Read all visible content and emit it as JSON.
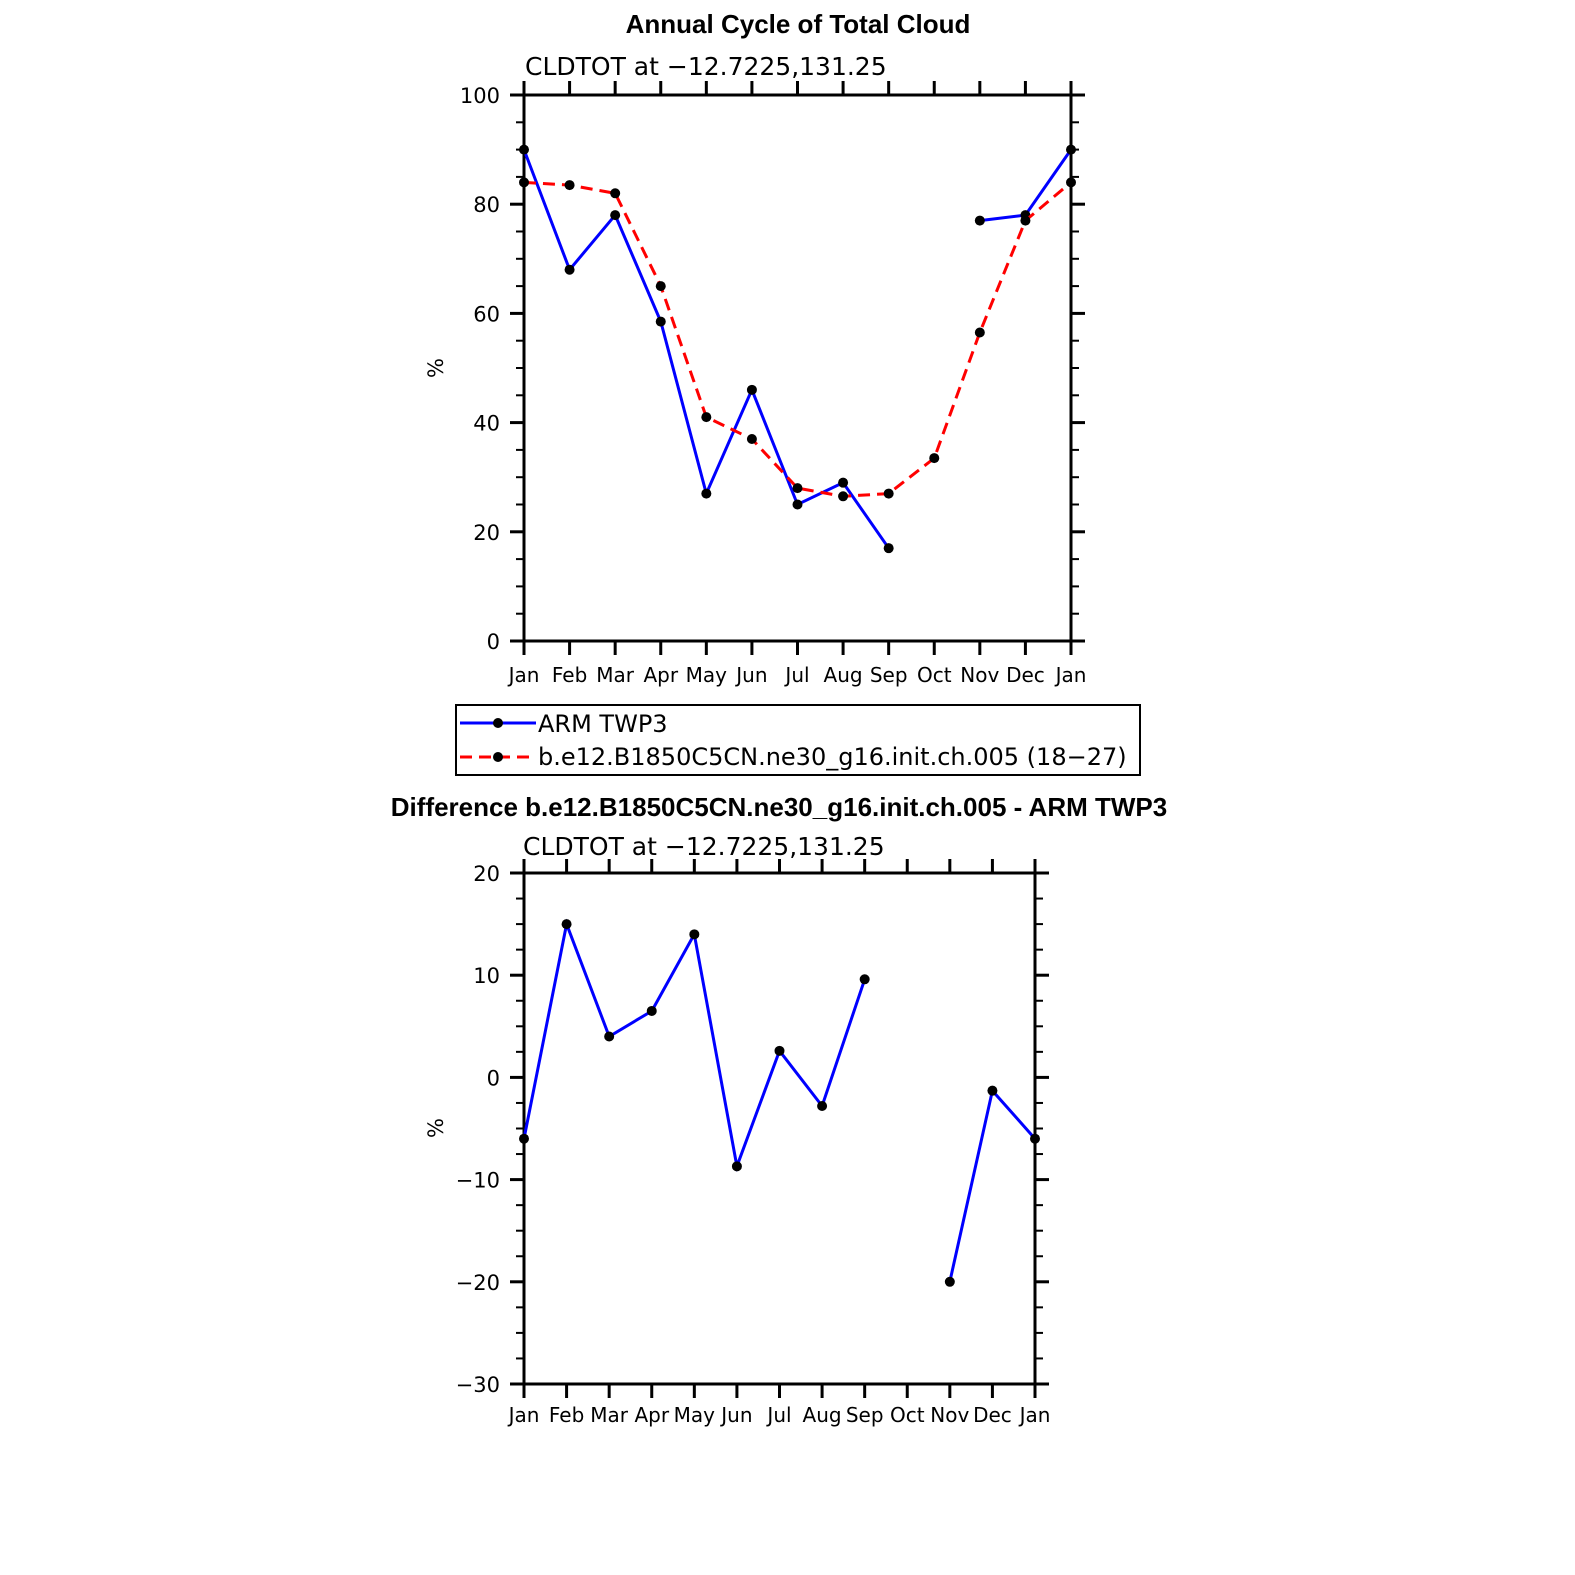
{
  "chart_data": [
    {
      "type": "line",
      "title": "Annual Cycle of Total Cloud",
      "subtitle": "CLDTOT at −12.7225,131.25",
      "ylabel": "%",
      "xlabel": "",
      "ylim": [
        0,
        100
      ],
      "yticks": [
        0,
        20,
        40,
        60,
        80,
        100
      ],
      "yticklabels": [
        "0",
        "20",
        "40",
        "60",
        "80",
        "100"
      ],
      "categories": [
        "Jan",
        "Feb",
        "Mar",
        "Apr",
        "May",
        "Jun",
        "Jul",
        "Aug",
        "Sep",
        "Oct",
        "Nov",
        "Dec",
        "Jan"
      ],
      "grid": false,
      "legend_placement": "below",
      "series": [
        {
          "name": "ARM TWP3",
          "color": "#0000ff",
          "dash": "solid",
          "values": [
            90,
            68,
            78,
            58.5,
            27,
            46,
            25,
            29,
            17,
            null,
            77,
            78,
            90
          ]
        },
        {
          "name": "b.e12.B1850C5CN.ne30_g16.init.ch.005 (18−27)",
          "color": "#ff0000",
          "dash": "dashed",
          "values": [
            84,
            83.5,
            82,
            65,
            41,
            37,
            28,
            26.5,
            27,
            33.5,
            56.5,
            77,
            84
          ]
        }
      ]
    },
    {
      "type": "line",
      "title": "Difference b.e12.B1850C5CN.ne30_g16.init.ch.005 - ARM TWP3",
      "subtitle": "CLDTOT at −12.7225,131.25",
      "ylabel": "%",
      "xlabel": "",
      "ylim": [
        -30,
        20
      ],
      "yticks": [
        -30,
        -20,
        -10,
        0,
        10,
        20
      ],
      "yticklabels": [
        "−30",
        "−20",
        "−10",
        "0",
        "10",
        "20"
      ],
      "categories": [
        "Jan",
        "Feb",
        "Mar",
        "Apr",
        "May",
        "Jun",
        "Jul",
        "Aug",
        "Sep",
        "Oct",
        "Nov",
        "Dec",
        "Jan"
      ],
      "grid": false,
      "series": [
        {
          "color": "#0000ff",
          "dash": "solid",
          "values": [
            -6,
            15,
            4,
            6.5,
            14,
            -8.7,
            2.6,
            -2.8,
            9.6,
            null,
            -20,
            -1.3,
            -6
          ]
        }
      ]
    }
  ]
}
